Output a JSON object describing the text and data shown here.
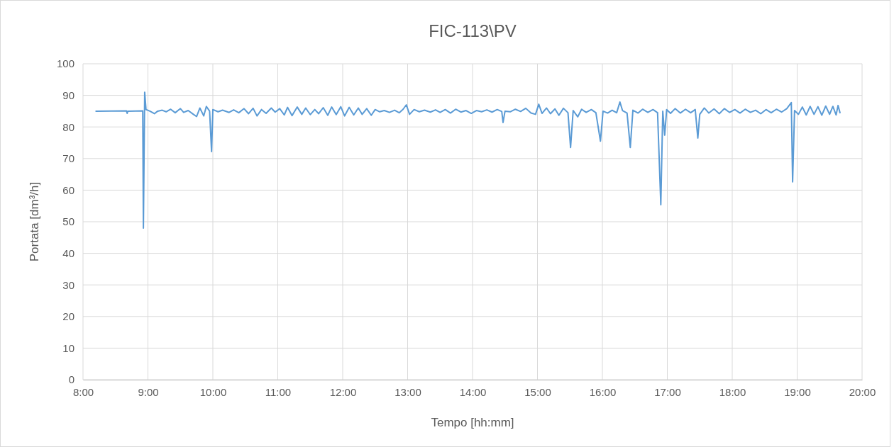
{
  "chart_data": {
    "type": "line",
    "title": "FIC-113\\PV",
    "xlabel": "Tempo [hh:mm]",
    "ylabel": "Portata [dm³/h]",
    "xlim": [
      8,
      20
    ],
    "xticks": [
      {
        "value": 8,
        "label": "8:00"
      },
      {
        "value": 9,
        "label": "9:00"
      },
      {
        "value": 10,
        "label": "10:00"
      },
      {
        "value": 11,
        "label": "11:00"
      },
      {
        "value": 12,
        "label": "12:00"
      },
      {
        "value": 13,
        "label": "13:00"
      },
      {
        "value": 14,
        "label": "14:00"
      },
      {
        "value": 15,
        "label": "15:00"
      },
      {
        "value": 16,
        "label": "16:00"
      },
      {
        "value": 17,
        "label": "17:00"
      },
      {
        "value": 18,
        "label": "18:00"
      },
      {
        "value": 19,
        "label": "19:00"
      },
      {
        "value": 20,
        "label": "20:00"
      }
    ],
    "ylim": [
      0,
      100
    ],
    "yticks": [
      0,
      10,
      20,
      30,
      40,
      50,
      60,
      70,
      80,
      90,
      100
    ],
    "grid": true,
    "marker": "none",
    "line_style": "solid",
    "series": [
      {
        "color": "#5b9bd5",
        "x": [
          8.2,
          8.67,
          8.68,
          8.69,
          8.92,
          8.93,
          8.95,
          8.97,
          9.03,
          9.1,
          9.15,
          9.22,
          9.28,
          9.35,
          9.42,
          9.5,
          9.55,
          9.62,
          9.7,
          9.75,
          9.8,
          9.86,
          9.9,
          9.95,
          9.98,
          10.0,
          10.08,
          10.15,
          10.25,
          10.32,
          10.4,
          10.48,
          10.55,
          10.62,
          10.68,
          10.75,
          10.82,
          10.9,
          10.96,
          11.03,
          11.1,
          11.15,
          11.22,
          11.3,
          11.37,
          11.43,
          11.5,
          11.57,
          11.63,
          11.7,
          11.77,
          11.83,
          11.9,
          11.97,
          12.03,
          12.1,
          12.17,
          12.24,
          12.3,
          12.37,
          12.44,
          12.5,
          12.57,
          12.64,
          12.72,
          12.8,
          12.87,
          12.93,
          12.98,
          13.03,
          13.1,
          13.18,
          13.26,
          13.35,
          13.43,
          13.5,
          13.58,
          13.66,
          13.74,
          13.82,
          13.9,
          13.98,
          14.06,
          14.14,
          14.22,
          14.3,
          14.38,
          14.45,
          14.47,
          14.5,
          14.58,
          14.66,
          14.74,
          14.82,
          14.9,
          14.97,
          15.02,
          15.07,
          15.14,
          15.2,
          15.27,
          15.33,
          15.4,
          15.47,
          15.51,
          15.55,
          15.62,
          15.68,
          15.75,
          15.83,
          15.9,
          15.97,
          16.01,
          16.08,
          16.15,
          16.22,
          16.27,
          16.31,
          16.38,
          16.43,
          16.47,
          16.55,
          16.62,
          16.7,
          16.78,
          16.85,
          16.9,
          16.93,
          16.96,
          16.99,
          17.05,
          17.12,
          17.2,
          17.28,
          17.36,
          17.43,
          17.47,
          17.5,
          17.57,
          17.64,
          17.72,
          17.8,
          17.88,
          17.96,
          18.04,
          18.12,
          18.2,
          18.28,
          18.36,
          18.44,
          18.52,
          18.6,
          18.68,
          18.76,
          18.84,
          18.91,
          18.93,
          18.96,
          19.02,
          19.08,
          19.14,
          19.2,
          19.26,
          19.32,
          19.38,
          19.44,
          19.5,
          19.55,
          19.6,
          19.63,
          19.66
        ],
        "values": [
          85,
          85.1,
          84.3,
          85,
          85.1,
          48,
          91,
          85.5,
          85,
          84.2,
          85,
          85.3,
          84.8,
          85.6,
          84.5,
          85.8,
          84.6,
          85.2,
          84,
          83.3,
          86,
          83.5,
          86.5,
          85,
          72.2,
          85.5,
          84.8,
          85.3,
          84.6,
          85.4,
          84.5,
          85.8,
          84.2,
          85.9,
          83.5,
          85.5,
          84.3,
          86,
          84.7,
          85.8,
          83.8,
          86.2,
          83.6,
          86.3,
          84,
          86,
          83.9,
          85.5,
          84.2,
          86.1,
          83.7,
          86.3,
          83.9,
          86.4,
          83.5,
          86.2,
          83.8,
          86,
          84,
          85.8,
          83.7,
          85.5,
          84.8,
          85.2,
          84.6,
          85.3,
          84.5,
          85.6,
          87,
          84,
          85.5,
          84.8,
          85.3,
          84.7,
          85.4,
          84.6,
          85.5,
          84.4,
          85.6,
          84.7,
          85.2,
          84.3,
          85.2,
          84.8,
          85.4,
          84.7,
          85.5,
          84.9,
          81.4,
          85,
          84.8,
          85.6,
          84.9,
          85.9,
          84.4,
          84,
          87.2,
          84.3,
          86,
          84.2,
          85.7,
          83.7,
          85.9,
          84.5,
          73.5,
          85.2,
          83.2,
          85.6,
          84.6,
          85.5,
          84.5,
          75.5,
          85,
          84.4,
          85.3,
          84.5,
          87.9,
          85.2,
          84.4,
          73.5,
          85.3,
          84.4,
          85.6,
          84.6,
          85.5,
          84.5,
          55.4,
          85,
          77.4,
          85.5,
          84.3,
          85.8,
          84.4,
          85.6,
          84.5,
          85.5,
          76.5,
          84,
          86,
          84.4,
          85.7,
          84.2,
          85.8,
          84.6,
          85.5,
          84.4,
          85.6,
          84.6,
          85.3,
          84.2,
          85.5,
          84.5,
          85.6,
          84.7,
          85.8,
          87.7,
          62.6,
          85.2,
          84,
          86.3,
          83.8,
          86.5,
          84,
          86.4,
          83.7,
          86.6,
          84,
          86.5,
          83.8,
          86.8,
          84.5
        ]
      }
    ]
  }
}
